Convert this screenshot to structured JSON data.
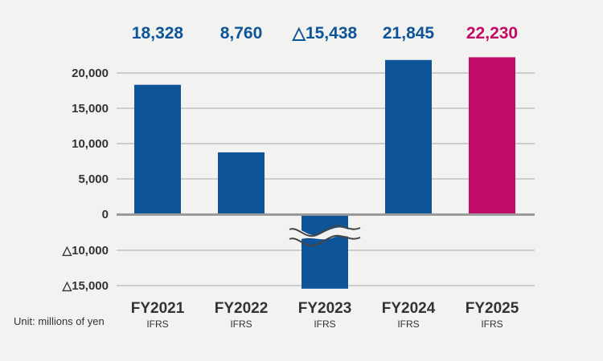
{
  "chart_data": {
    "type": "bar",
    "categories": [
      "FY2021",
      "FY2022",
      "FY2023",
      "FY2024",
      "FY2025"
    ],
    "subcategories": [
      "IFRS",
      "IFRS",
      "IFRS",
      "IFRS",
      "IFRS"
    ],
    "values": [
      18328,
      8760,
      -15438,
      21845,
      22230
    ],
    "data_labels": [
      "18,328",
      "8,760",
      "△15,438",
      "21,845",
      "22,230"
    ],
    "bar_colors": [
      "#0e5499",
      "#0e5499",
      "#0e5499",
      "#0e5499",
      "#c20b66"
    ],
    "label_colors": [
      "#0e5499",
      "#0e5499",
      "#0e5499",
      "#0e5499",
      "#c20b66"
    ],
    "y_ticks": [
      {
        "value": 20000,
        "label": "20,000"
      },
      {
        "value": 15000,
        "label": "15,000"
      },
      {
        "value": 10000,
        "label": "10,000"
      },
      {
        "value": 5000,
        "label": "5,000"
      },
      {
        "value": 0,
        "label": "0"
      },
      {
        "value": -10000,
        "label": "△10,000"
      },
      {
        "value": -15000,
        "label": "△15,000"
      }
    ],
    "axis_break": "between 0 and △10,000",
    "unit": "Unit: millions of yen",
    "grid": true,
    "xlabel": "",
    "ylabel": ""
  }
}
